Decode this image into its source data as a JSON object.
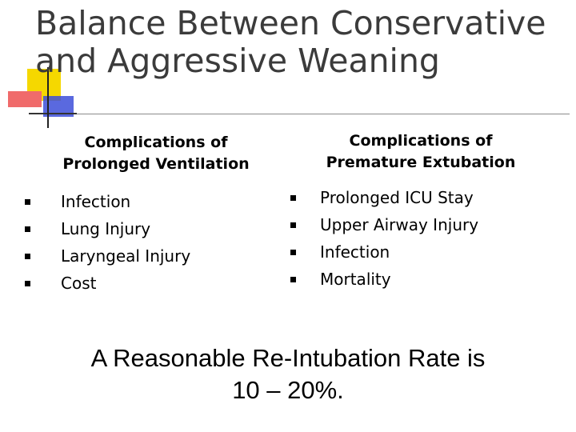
{
  "title": {
    "line1": "Balance Between Conservative",
    "line2": "and Aggressive Weaning"
  },
  "left_column": {
    "heading_line1": "Complications of",
    "heading_line2": "Prolonged Ventilation",
    "items": [
      "Infection",
      "Lung Injury",
      "Laryngeal Injury",
      "Cost"
    ]
  },
  "right_column": {
    "heading_line1": "Complications of",
    "heading_line2": "Premature Extubation",
    "items": [
      "Prolonged ICU Stay",
      "Upper Airway Injury",
      "Infection",
      "Mortality"
    ]
  },
  "conclusion": {
    "line1": "A Reasonable Re-Intubation Rate is",
    "line2": "10 – 20%."
  },
  "colors": {
    "accent_yellow": "#f5d800",
    "accent_pink": "#f06b6b",
    "accent_blue": "#3d4fd9",
    "title_text": "#3b3b3b"
  }
}
